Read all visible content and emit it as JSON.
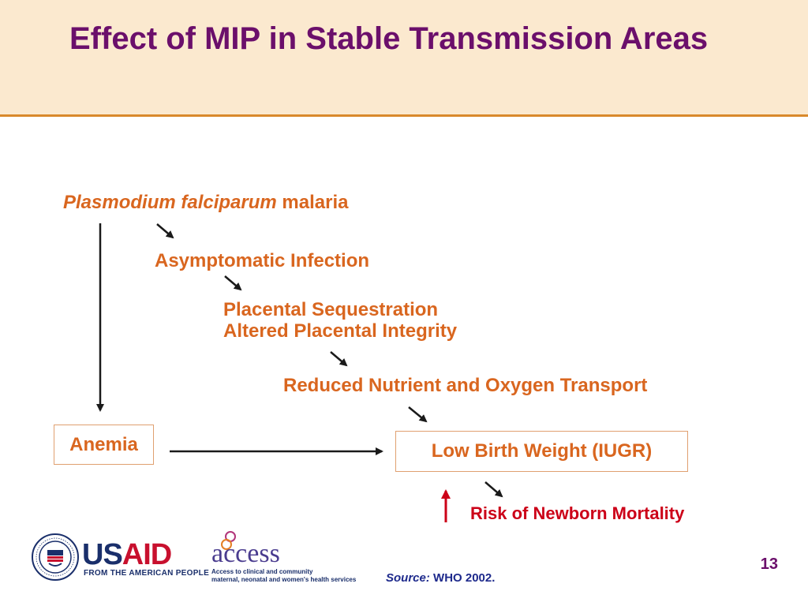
{
  "slide": {
    "title": "Effect of MIP in Stable Transmission Areas",
    "page_number": "13"
  },
  "diagram": {
    "pathogen_italic": "Plasmodium falciparum",
    "pathogen_plain": "malaria",
    "nodes": {
      "asymptomatic": "Asymptomatic Infection",
      "placental_sequestration": "Placental Sequestration",
      "altered_integrity": "Altered Placental Integrity",
      "reduced_transport": "Reduced Nutrient and Oxygen Transport",
      "anemia": "Anemia",
      "low_birth_weight": "Low Birth Weight (IUGR)",
      "risk": "Risk of Newborn Mortality"
    }
  },
  "source": {
    "label": "Source:",
    "text": "WHO 2002."
  },
  "logos": {
    "usaid_word_blue": "US",
    "usaid_word_red": "AID",
    "usaid_tagline": "FROM THE AMERICAN PEOPLE",
    "access_word": "access",
    "access_tagline_1": "Access to clinical and community",
    "access_tagline_2": "maternal, neonatal and women's health services"
  },
  "colors": {
    "title": "#6b0f6b",
    "node_text": "#d9661f",
    "risk_text": "#cc0018",
    "header_bg": "#fbe9cf",
    "header_rule": "#d9892b"
  }
}
